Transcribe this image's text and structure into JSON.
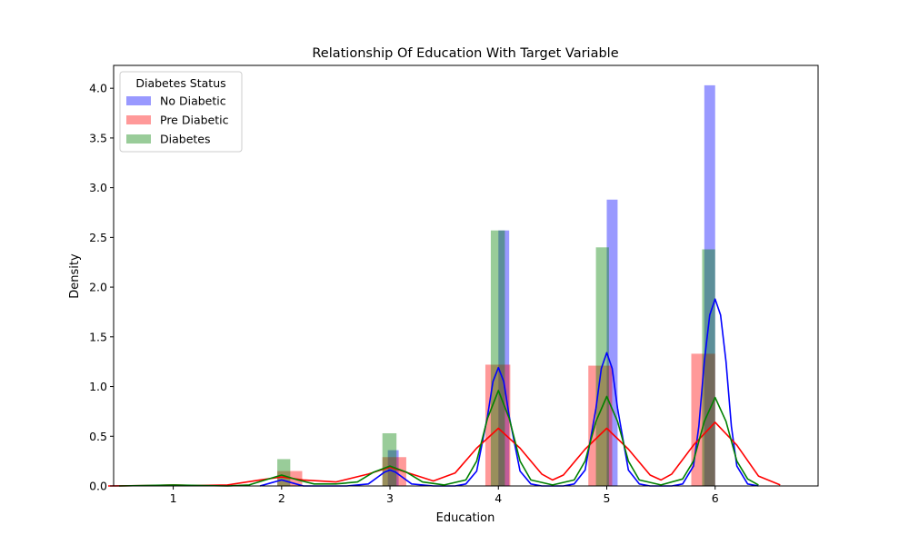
{
  "chart_data": {
    "type": "bar",
    "title": "Relationship Of Education With Target Variable",
    "xlabel": "Education",
    "ylabel": "Density",
    "xlim": [
      0.45,
      6.95
    ],
    "ylim": [
      0,
      4.23
    ],
    "xticks": [
      1,
      2,
      3,
      4,
      5,
      6
    ],
    "yticks": [
      0.0,
      0.5,
      1.0,
      1.5,
      2.0,
      2.5,
      3.0,
      3.5,
      4.0
    ],
    "grid": false,
    "legend": {
      "title": "Diabetes Status",
      "placement": "top-left"
    },
    "series": [
      {
        "name": "No Diabetic",
        "color": "#0000ff",
        "bars": [
          {
            "x0": 2.98,
            "x1": 3.08,
            "value": 0.36
          },
          {
            "x0": 4.0,
            "x1": 4.1,
            "value": 2.57
          },
          {
            "x0": 5.0,
            "x1": 5.1,
            "value": 2.88
          },
          {
            "x0": 5.9,
            "x1": 6.0,
            "value": 4.03
          }
        ],
        "kde": {
          "x": [
            1.8,
            1.9,
            2.0,
            2.1,
            2.2,
            2.4,
            2.6,
            2.8,
            2.9,
            2.95,
            3.0,
            3.05,
            3.1,
            3.2,
            3.4,
            3.6,
            3.7,
            3.8,
            3.9,
            3.95,
            4.0,
            4.05,
            4.1,
            4.2,
            4.3,
            4.4,
            4.5,
            4.6,
            4.7,
            4.8,
            4.9,
            4.95,
            5.0,
            5.05,
            5.1,
            5.2,
            5.3,
            5.4,
            5.5,
            5.6,
            5.7,
            5.8,
            5.85,
            5.9,
            5.95,
            6.0,
            6.05,
            6.1,
            6.15,
            6.2,
            6.3,
            6.4
          ],
          "y": [
            0.0,
            0.03,
            0.06,
            0.03,
            0.0,
            0.0,
            0.0,
            0.02,
            0.1,
            0.14,
            0.16,
            0.14,
            0.1,
            0.02,
            0.0,
            0.0,
            0.02,
            0.15,
            0.7,
            1.05,
            1.19,
            1.05,
            0.7,
            0.15,
            0.02,
            0.0,
            0.0,
            0.0,
            0.02,
            0.16,
            0.78,
            1.18,
            1.34,
            1.18,
            0.78,
            0.16,
            0.02,
            0.0,
            0.0,
            0.0,
            0.02,
            0.2,
            0.6,
            1.25,
            1.72,
            1.88,
            1.72,
            1.25,
            0.6,
            0.2,
            0.02,
            0.0
          ]
        }
      },
      {
        "name": "Pre Diabetic",
        "color": "#ff0000",
        "bars": [
          {
            "x0": 1.96,
            "x1": 2.19,
            "value": 0.15
          },
          {
            "x0": 2.93,
            "x1": 3.15,
            "value": 0.29
          },
          {
            "x0": 3.88,
            "x1": 4.11,
            "value": 1.22
          },
          {
            "x0": 4.83,
            "x1": 5.05,
            "value": 1.21
          },
          {
            "x0": 5.78,
            "x1": 6.0,
            "value": 1.33
          }
        ],
        "kde": {
          "x": [
            0.4,
            0.8,
            1.0,
            1.2,
            1.5,
            1.8,
            2.0,
            2.2,
            2.5,
            2.8,
            3.0,
            3.2,
            3.4,
            3.6,
            3.8,
            4.0,
            4.2,
            4.4,
            4.5,
            4.6,
            4.8,
            5.0,
            5.2,
            5.4,
            5.5,
            5.6,
            5.8,
            6.0,
            6.2,
            6.4,
            6.6
          ],
          "y": [
            0.0,
            0.005,
            0.01,
            0.005,
            0.01,
            0.06,
            0.09,
            0.06,
            0.04,
            0.12,
            0.19,
            0.12,
            0.05,
            0.13,
            0.38,
            0.58,
            0.38,
            0.12,
            0.06,
            0.11,
            0.37,
            0.58,
            0.37,
            0.11,
            0.06,
            0.12,
            0.41,
            0.64,
            0.41,
            0.1,
            0.01
          ]
        }
      },
      {
        "name": "Diabetes",
        "color": "#008000",
        "bars": [
          {
            "x0": 1.96,
            "x1": 2.08,
            "value": 0.27
          },
          {
            "x0": 2.93,
            "x1": 3.06,
            "value": 0.53
          },
          {
            "x0": 3.93,
            "x1": 4.06,
            "value": 2.57
          },
          {
            "x0": 4.9,
            "x1": 5.02,
            "value": 2.4
          },
          {
            "x0": 5.88,
            "x1": 6.0,
            "value": 2.38
          }
        ],
        "kde": {
          "x": [
            0.5,
            1.0,
            1.5,
            1.7,
            1.85,
            2.0,
            2.15,
            2.3,
            2.5,
            2.7,
            2.85,
            3.0,
            3.15,
            3.3,
            3.5,
            3.7,
            3.8,
            3.9,
            4.0,
            4.1,
            4.2,
            4.3,
            4.5,
            4.7,
            4.8,
            4.9,
            5.0,
            5.1,
            5.2,
            5.3,
            5.5,
            5.7,
            5.8,
            5.9,
            6.0,
            6.1,
            6.2,
            6.3,
            6.4
          ],
          "y": [
            0.0,
            0.01,
            0.0,
            0.01,
            0.06,
            0.11,
            0.06,
            0.02,
            0.02,
            0.04,
            0.14,
            0.2,
            0.14,
            0.04,
            0.01,
            0.06,
            0.25,
            0.68,
            0.96,
            0.68,
            0.25,
            0.06,
            0.01,
            0.06,
            0.25,
            0.65,
            0.9,
            0.65,
            0.25,
            0.06,
            0.01,
            0.07,
            0.25,
            0.65,
            0.89,
            0.65,
            0.25,
            0.07,
            0.01
          ]
        }
      }
    ]
  }
}
